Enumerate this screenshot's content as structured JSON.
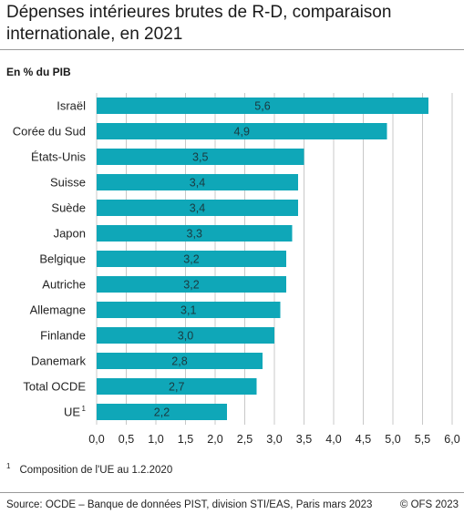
{
  "title": "Dépenses intérieures brutes de R-D, comparaison internationale, en 2021",
  "unit_label": "En % du PIB",
  "footnote": {
    "marker": "1",
    "text": "Composition de l'UE au 1.2.2020"
  },
  "source": "Source: OCDE – Banque de données PIST, division STI/EAS, Paris mars 2023",
  "copyright": "© OFS 2023",
  "colors": {
    "bar": "#0fa7b8",
    "grid": "#c8c8c8",
    "text": "#222222"
  },
  "chart_data": {
    "type": "bar",
    "orientation": "horizontal",
    "categories": [
      "Israël",
      "Corée du Sud",
      "États-Unis",
      "Suisse",
      "Suède",
      "Japon",
      "Belgique",
      "Autriche",
      "Allemagne",
      "Finlande",
      "Danemark",
      "Total OCDE",
      "UE"
    ],
    "category_superscripts": {
      "UE": "1"
    },
    "values": [
      5.6,
      4.9,
      3.5,
      3.4,
      3.4,
      3.3,
      3.2,
      3.2,
      3.1,
      3.0,
      2.8,
      2.7,
      2.2
    ],
    "value_labels": [
      "5,6",
      "4,9",
      "3,5",
      "3,4",
      "3,4",
      "3,3",
      "3,2",
      "3,2",
      "3,1",
      "3,0",
      "2,8",
      "2,7",
      "2,2"
    ],
    "xlim": [
      0,
      6
    ],
    "xticks": [
      "0,0",
      "0,5",
      "1,0",
      "1,5",
      "2,0",
      "2,5",
      "3,0",
      "3,5",
      "4,0",
      "4,5",
      "5,0",
      "5,5",
      "6,0"
    ],
    "grid": "vertical",
    "legend": "none"
  }
}
